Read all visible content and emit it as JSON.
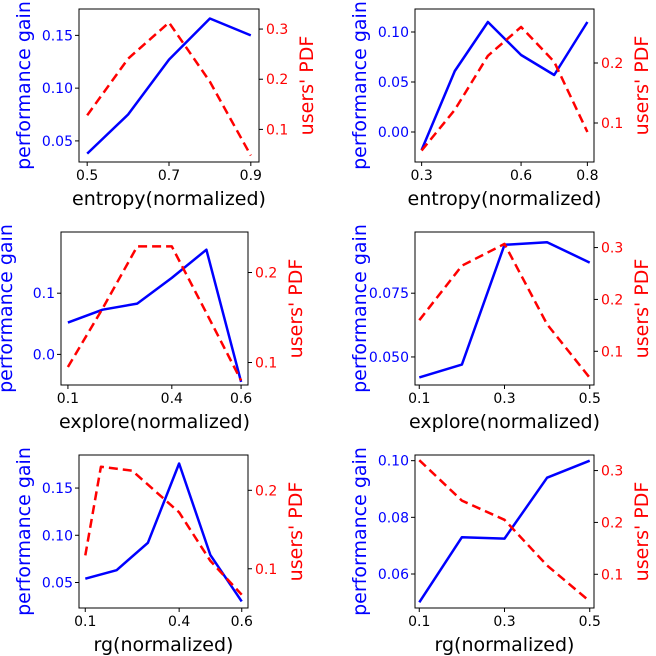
{
  "colors": {
    "left_series": "#0000ff",
    "right_series": "#ff0000",
    "axes": "#000000"
  },
  "chart_data": [
    {
      "type": "line",
      "xlabel": "entropy(normalized)",
      "ylabel_left": "performance gain",
      "ylabel_right": "users' PDF",
      "xlim": [
        0.48,
        0.92
      ],
      "xticks": [
        0.5,
        0.7,
        0.9
      ],
      "xtick_labels": [
        "0.5",
        "0.7",
        "0.9"
      ],
      "ylim_left": [
        0.03,
        0.175
      ],
      "yticks_left": [
        0.05,
        0.1,
        0.15
      ],
      "ytick_labels_left": [
        "0.05",
        "0.10",
        "0.15"
      ],
      "ylim_right": [
        0.035,
        0.34
      ],
      "yticks_right": [
        0.1,
        0.2,
        0.3
      ],
      "ytick_labels_right": [
        "0.1",
        "0.2",
        "0.3"
      ],
      "series": [
        {
          "axis": "left",
          "style": "solid",
          "x": [
            0.5,
            0.6,
            0.7,
            0.8,
            0.9
          ],
          "values": [
            0.038,
            0.075,
            0.127,
            0.166,
            0.15
          ]
        },
        {
          "axis": "right",
          "style": "dashed",
          "x": [
            0.5,
            0.6,
            0.7,
            0.8,
            0.9
          ],
          "values": [
            0.128,
            0.241,
            0.313,
            0.195,
            0.048
          ]
        }
      ]
    },
    {
      "type": "line",
      "xlabel": "entropy(normalized)",
      "ylabel_left": "performance gain",
      "ylabel_right": "users' PDF",
      "xlim": [
        0.28,
        0.82
      ],
      "xticks": [
        0.3,
        0.6,
        0.8
      ],
      "xtick_labels": [
        "0.3",
        "0.6",
        "0.8"
      ],
      "ylim_left": [
        -0.03,
        0.123
      ],
      "yticks_left": [
        0.0,
        0.05,
        0.1
      ],
      "ytick_labels_left": [
        "0.00",
        "0.05",
        "0.10"
      ],
      "ylim_right": [
        0.035,
        0.29
      ],
      "yticks_right": [
        0.1,
        0.2
      ],
      "ytick_labels_right": [
        "0.1",
        "0.2"
      ],
      "series": [
        {
          "axis": "left",
          "style": "solid",
          "x": [
            0.3,
            0.4,
            0.5,
            0.6,
            0.7,
            0.8
          ],
          "values": [
            -0.018,
            0.061,
            0.11,
            0.077,
            0.057,
            0.11
          ]
        },
        {
          "axis": "right",
          "style": "dashed",
          "x": [
            0.3,
            0.4,
            0.5,
            0.6,
            0.7,
            0.8
          ],
          "values": [
            0.054,
            0.122,
            0.212,
            0.26,
            0.202,
            0.085
          ]
        }
      ]
    },
    {
      "type": "line",
      "xlabel": "explore(normalized)",
      "ylabel_left": "performance gain",
      "ylabel_right": "users' PDF",
      "xlim": [
        0.08,
        0.62
      ],
      "xticks": [
        0.1,
        0.4,
        0.6
      ],
      "xtick_labels": [
        "0.1",
        "0.4",
        "0.6"
      ],
      "ylim_left": [
        -0.05,
        0.2
      ],
      "yticks_left": [
        0.0,
        0.1
      ],
      "ytick_labels_left": [
        "0.0",
        "0.1"
      ],
      "ylim_right": [
        0.075,
        0.245
      ],
      "yticks_right": [
        0.1,
        0.2
      ],
      "ytick_labels_right": [
        "0.1",
        "0.2"
      ],
      "series": [
        {
          "axis": "left",
          "style": "solid",
          "x": [
            0.1,
            0.2,
            0.3,
            0.4,
            0.5,
            0.6
          ],
          "values": [
            0.052,
            0.073,
            0.083,
            0.125,
            0.171,
            -0.045
          ]
        },
        {
          "axis": "right",
          "style": "dashed",
          "x": [
            0.1,
            0.2,
            0.3,
            0.4,
            0.5,
            0.6
          ],
          "values": [
            0.095,
            0.16,
            0.229,
            0.229,
            0.155,
            0.08
          ]
        }
      ]
    },
    {
      "type": "line",
      "xlabel": "explore(normalized)",
      "ylabel_left": "performance gain",
      "ylabel_right": "users' PDF",
      "xlim": [
        0.09,
        0.51
      ],
      "xticks": [
        0.1,
        0.3,
        0.5
      ],
      "xtick_labels": [
        "0.1",
        "0.3",
        "0.5"
      ],
      "ylim_left": [
        0.039,
        0.099
      ],
      "yticks_left": [
        0.05,
        0.075
      ],
      "ytick_labels_left": [
        "0.050",
        "0.075"
      ],
      "ylim_right": [
        0.035,
        0.33
      ],
      "yticks_right": [
        0.1,
        0.2,
        0.3
      ],
      "ytick_labels_right": [
        "0.1",
        "0.2",
        "0.3"
      ],
      "series": [
        {
          "axis": "left",
          "style": "solid",
          "x": [
            0.1,
            0.2,
            0.3,
            0.4,
            0.5
          ],
          "values": [
            0.042,
            0.047,
            0.094,
            0.095,
            0.087
          ]
        },
        {
          "axis": "right",
          "style": "dashed",
          "x": [
            0.1,
            0.2,
            0.3,
            0.4,
            0.5
          ],
          "values": [
            0.16,
            0.265,
            0.307,
            0.152,
            0.049
          ]
        }
      ]
    },
    {
      "type": "line",
      "xlabel": "rg(normalized)",
      "ylabel_left": "performance gain",
      "ylabel_right": "users' PDF",
      "xlim": [
        0.08,
        0.62
      ],
      "xticks": [
        0.1,
        0.4,
        0.6
      ],
      "xtick_labels": [
        "0.1",
        "0.4",
        "0.6"
      ],
      "ylim_left": [
        0.023,
        0.185
      ],
      "yticks_left": [
        0.05,
        0.1,
        0.15
      ],
      "ytick_labels_left": [
        "0.05",
        "0.10",
        "0.15"
      ],
      "ylim_right": [
        0.05,
        0.245
      ],
      "yticks_right": [
        0.1,
        0.2
      ],
      "ytick_labels_right": [
        "0.1",
        "0.2"
      ],
      "series": [
        {
          "axis": "left",
          "style": "solid",
          "x": [
            0.1,
            0.2,
            0.3,
            0.4,
            0.5,
            0.6
          ],
          "values": [
            0.054,
            0.063,
            0.092,
            0.176,
            0.079,
            0.03
          ]
        },
        {
          "axis": "right",
          "style": "dashed",
          "x": [
            0.1,
            0.15,
            0.25,
            0.4,
            0.5,
            0.6
          ],
          "values": [
            0.117,
            0.23,
            0.225,
            0.172,
            0.11,
            0.067
          ]
        }
      ]
    },
    {
      "type": "line",
      "xlabel": "rg(normalized)",
      "ylabel_left": "performance gain",
      "ylabel_right": "users' PDF",
      "xlim": [
        0.09,
        0.51
      ],
      "xticks": [
        0.1,
        0.3,
        0.5
      ],
      "xtick_labels": [
        "0.1",
        "0.3",
        "0.5"
      ],
      "ylim_left": [
        0.048,
        0.102
      ],
      "yticks_left": [
        0.06,
        0.08,
        0.1
      ],
      "ytick_labels_left": [
        "0.06",
        "0.08",
        "0.10"
      ],
      "ylim_right": [
        0.035,
        0.33
      ],
      "yticks_right": [
        0.1,
        0.2,
        0.3
      ],
      "ytick_labels_right": [
        "0.1",
        "0.2",
        "0.3"
      ],
      "series": [
        {
          "axis": "left",
          "style": "solid",
          "x": [
            0.1,
            0.2,
            0.3,
            0.4,
            0.5
          ],
          "values": [
            0.05,
            0.073,
            0.0725,
            0.094,
            0.1
          ]
        },
        {
          "axis": "right",
          "style": "dashed",
          "x": [
            0.1,
            0.2,
            0.3,
            0.4,
            0.5
          ],
          "values": [
            0.32,
            0.242,
            0.205,
            0.117,
            0.048
          ]
        }
      ]
    }
  ]
}
